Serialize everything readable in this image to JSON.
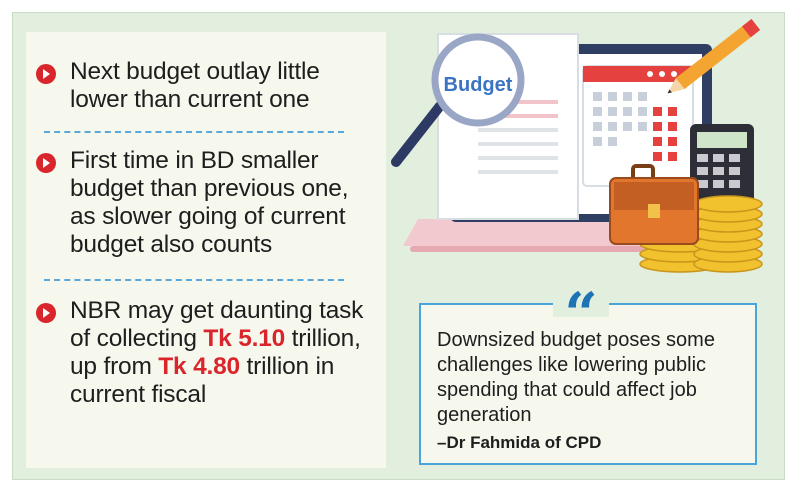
{
  "bullets": [
    {
      "parts": [
        {
          "text": "Next budget outlay little lower than current one",
          "highlight": false
        }
      ]
    },
    {
      "parts": [
        {
          "text": "First time in BD smaller budget than previous one, as slower going of current budget also counts",
          "highlight": false
        }
      ]
    },
    {
      "parts": [
        {
          "text": "NBR may get daunting task of collecting ",
          "highlight": false
        },
        {
          "text": "Tk 5.10",
          "highlight": true
        },
        {
          "text": " trillion, up from ",
          "highlight": false
        },
        {
          "text": "Tk 4.80",
          "highlight": true
        },
        {
          "text": " trillion in current fiscal",
          "highlight": false
        }
      ]
    }
  ],
  "illustration": {
    "label": "Budget"
  },
  "quote": {
    "mark": "“",
    "text": "Downsized budget poses some challenges like lowering public spending that could affect job generation",
    "author": "–Dr Fahmida of CPD"
  },
  "colors": {
    "accent_red": "#d9262c",
    "accent_blue": "#1d74b5",
    "background": "#e2efdf"
  }
}
